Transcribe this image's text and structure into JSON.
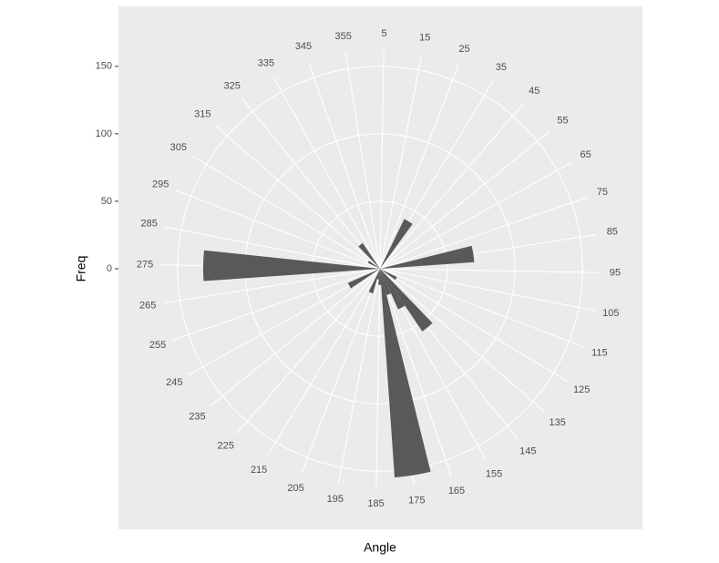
{
  "chart_data": {
    "type": "polar-bar",
    "x_label": "Angle",
    "y_label": "Freq",
    "x": [
      35,
      85,
      125,
      145,
      155,
      165,
      175,
      185,
      195,
      205,
      245,
      275,
      305,
      325
    ],
    "values": [
      41,
      70,
      14,
      56,
      33,
      20,
      155,
      12,
      8,
      19,
      26,
      131,
      10,
      23
    ],
    "bar_width": 10,
    "color": "#595959",
    "xlim": [
      4,
      364
    ],
    "xticks": [
      5,
      15,
      25,
      35,
      45,
      55,
      65,
      75,
      85,
      95,
      105,
      115,
      125,
      135,
      145,
      155,
      165,
      175,
      185,
      195,
      205,
      215,
      225,
      235,
      245,
      255,
      265,
      275,
      285,
      295,
      305,
      315,
      325,
      335,
      345,
      355
    ],
    "ylim": [
      0,
      162
    ],
    "yticks": [
      0,
      50,
      100,
      150
    ],
    "grid": true
  }
}
